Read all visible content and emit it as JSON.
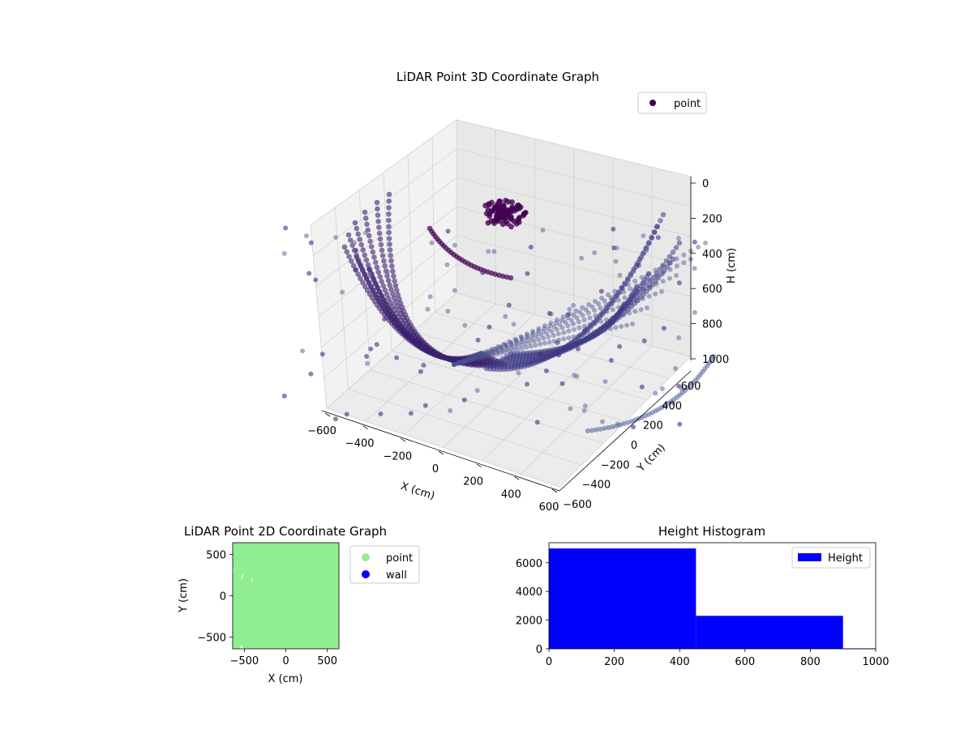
{
  "chart_data": [
    {
      "type": "scatter",
      "title": "LiDAR Point 3D Coordinate Graph",
      "xlabel": "X (cm)",
      "ylabel": "Y (cm)",
      "zlabel": "H (cm)",
      "xlim": [
        -600,
        600
      ],
      "ylim": [
        -600,
        600
      ],
      "zlim": [
        1000,
        0
      ],
      "x_ticks": [
        "−600",
        "−400",
        "−200",
        "0",
        "200",
        "400",
        "600"
      ],
      "y_ticks": [
        "−600",
        "−400",
        "−200",
        "0",
        "200",
        "400",
        "600"
      ],
      "z_ticks": [
        "0",
        "200",
        "400",
        "600",
        "800",
        "1000"
      ],
      "grid": true,
      "legend": {
        "placement": "top-right",
        "entries": [
          {
            "label": "point",
            "color": "#440154"
          }
        ]
      },
      "colormap": "viridis",
      "series": [
        {
          "name": "point",
          "color": "#440154"
        }
      ]
    },
    {
      "type": "scatter",
      "title": "LiDAR Point 2D Coordinate Graph",
      "xlabel": "X (cm)",
      "ylabel": "Y (cm)",
      "xlim": [
        -640,
        640
      ],
      "ylim": [
        -640,
        640
      ],
      "x_ticks": [
        "−500",
        "0",
        "500"
      ],
      "y_ticks": [
        "500",
        "0",
        "−500"
      ],
      "legend": {
        "placement": "outside-right",
        "entries": [
          {
            "label": "point",
            "color": "#90ee90"
          },
          {
            "label": "wall",
            "color": "#0000ff"
          }
        ]
      },
      "series": [
        {
          "name": "point",
          "color": "#90ee90"
        },
        {
          "name": "wall",
          "color": "#0000ff"
        }
      ]
    },
    {
      "type": "bar",
      "title": "Height Histogram",
      "xlim": [
        0,
        1000
      ],
      "ylim": [
        0,
        7400
      ],
      "x_ticks": [
        "0",
        "200",
        "400",
        "600",
        "800",
        "1000"
      ],
      "y_ticks": [
        "0",
        "2000",
        "4000",
        "6000"
      ],
      "bins": [
        {
          "from": 0,
          "to": 450,
          "count": 7000
        },
        {
          "from": 450,
          "to": 900,
          "count": 2300
        },
        {
          "from": 900,
          "to": 1000,
          "count": 30
        }
      ],
      "legend": {
        "placement": "top-right",
        "entries": [
          {
            "label": "Height",
            "color": "#0000ff"
          }
        ]
      },
      "series": [
        {
          "name": "Height",
          "color": "#0000ff"
        }
      ]
    }
  ]
}
